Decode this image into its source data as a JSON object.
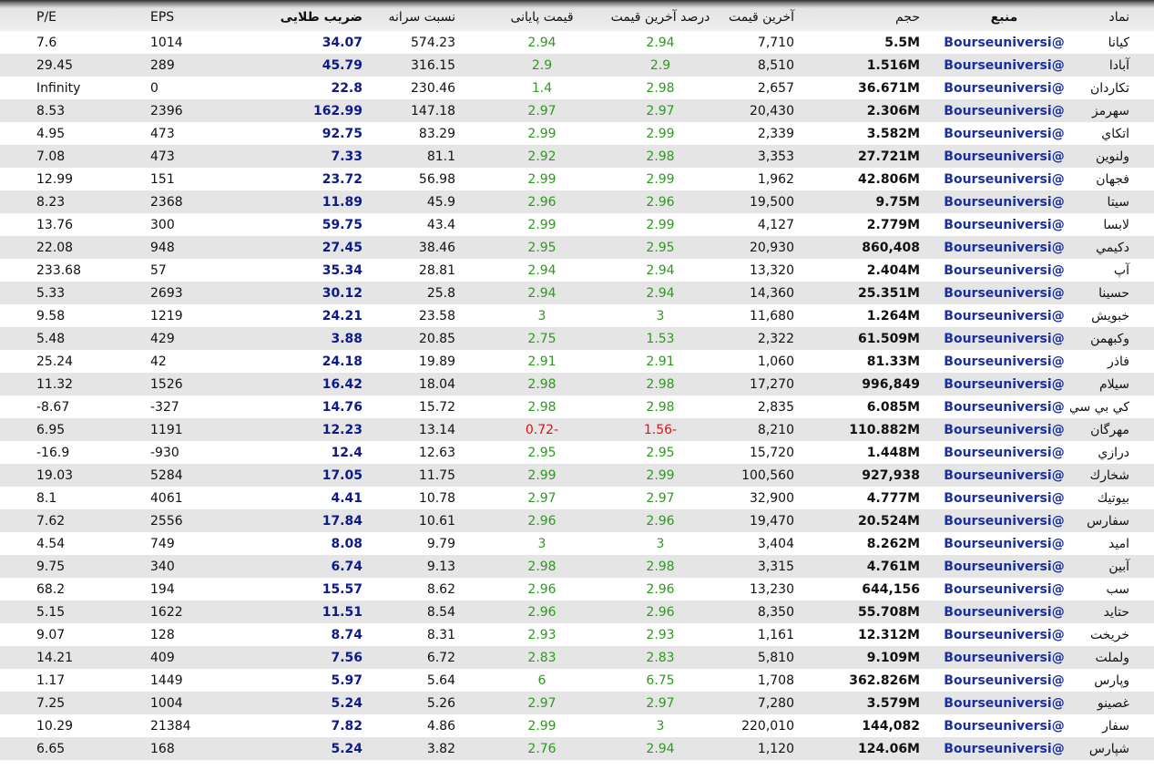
{
  "table": {
    "header": [
      "نماد",
      "منبع",
      "حجم",
      "آخرین قیمت",
      "درصد آخرین قیمت",
      "قیمت پایانی",
      "نسبت سرانه",
      "ضریب طلایی",
      "EPS",
      "P/E"
    ],
    "rows": [
      [
        "کیانا",
        "@Bourseuniversi",
        "5.5M",
        "7,710",
        "2.94",
        "2.94",
        "574.23",
        "34.07",
        "1014",
        "7.6"
      ],
      [
        "آبادا",
        "@Bourseuniversi",
        "1.516M",
        "8,510",
        "2.9",
        "2.9",
        "316.15",
        "45.79",
        "289",
        "29.45"
      ],
      [
        "تکاردان",
        "@Bourseuniversi",
        "36.671M",
        "2,657",
        "2.98",
        "1.4",
        "230.46",
        "22.8",
        "0",
        "Infinity"
      ],
      [
        "سهرمز",
        "@Bourseuniversi",
        "2.306M",
        "20,430",
        "2.97",
        "2.97",
        "147.18",
        "162.99",
        "2396",
        "8.53"
      ],
      [
        "اتکاي",
        "@Bourseuniversi",
        "3.582M",
        "2,339",
        "2.99",
        "2.99",
        "83.29",
        "92.75",
        "473",
        "4.95"
      ],
      [
        "ولنوین",
        "@Bourseuniversi",
        "27.721M",
        "3,353",
        "2.98",
        "2.92",
        "81.1",
        "7.33",
        "473",
        "7.08"
      ],
      [
        "فجهان",
        "@Bourseuniversi",
        "42.806M",
        "1,962",
        "2.99",
        "2.99",
        "56.98",
        "23.72",
        "151",
        "12.99"
      ],
      [
        "سيتا",
        "@Bourseuniversi",
        "9.75M",
        "19,500",
        "2.96",
        "2.96",
        "45.9",
        "11.89",
        "2368",
        "8.23"
      ],
      [
        "لابسا",
        "@Bourseuniversi",
        "2.779M",
        "4,127",
        "2.99",
        "2.99",
        "43.4",
        "59.75",
        "300",
        "13.76"
      ],
      [
        "دکيمي",
        "@Bourseuniversi",
        "860,408",
        "20,930",
        "2.95",
        "2.95",
        "38.46",
        "27.45",
        "948",
        "22.08"
      ],
      [
        "آپ",
        "@Bourseuniversi",
        "2.404M",
        "13,320",
        "2.94",
        "2.94",
        "28.81",
        "35.34",
        "57",
        "233.68"
      ],
      [
        "حسينا",
        "@Bourseuniversi",
        "25.351M",
        "14,360",
        "2.94",
        "2.94",
        "25.8",
        "30.12",
        "2693",
        "5.33"
      ],
      [
        "خبويش",
        "@Bourseuniversi",
        "1.264M",
        "11,680",
        "3",
        "3",
        "23.58",
        "24.21",
        "1219",
        "9.58"
      ],
      [
        "وكبهمن",
        "@Bourseuniversi",
        "61.509M",
        "2,322",
        "1.53",
        "2.75",
        "20.85",
        "3.88",
        "429",
        "5.48"
      ],
      [
        "فاذر",
        "@Bourseuniversi",
        "81.33M",
        "1,060",
        "2.91",
        "2.91",
        "19.89",
        "24.18",
        "42",
        "25.24"
      ],
      [
        "سيلام",
        "@Bourseuniversi",
        "996,849",
        "17,270",
        "2.98",
        "2.98",
        "18.04",
        "16.42",
        "1526",
        "11.32"
      ],
      [
        "كي بي سي",
        "@Bourseuniversi",
        "6.085M",
        "2,835",
        "2.98",
        "2.98",
        "15.72",
        "14.76",
        "-327",
        "-8.67"
      ],
      [
        "مهرگان",
        "@Bourseuniversi",
        "110.882M",
        "8,210",
        "-1.56",
        "-0.72",
        "13.14",
        "12.23",
        "1191",
        "6.95"
      ],
      [
        "درازي",
        "@Bourseuniversi",
        "1.448M",
        "15,720",
        "2.95",
        "2.95",
        "12.63",
        "12.4",
        "-930",
        "-16.9"
      ],
      [
        "شخارك",
        "@Bourseuniversi",
        "927,938",
        "100,560",
        "2.99",
        "2.99",
        "11.75",
        "17.05",
        "5284",
        "19.03"
      ],
      [
        "بيوتيك",
        "@Bourseuniversi",
        "4.777M",
        "32,900",
        "2.97",
        "2.97",
        "10.78",
        "4.41",
        "4061",
        "8.1"
      ],
      [
        "سفارس",
        "@Bourseuniversi",
        "20.524M",
        "19,470",
        "2.96",
        "2.96",
        "10.61",
        "17.84",
        "2556",
        "7.62"
      ],
      [
        "اميد",
        "@Bourseuniversi",
        "8.262M",
        "3,404",
        "3",
        "3",
        "9.79",
        "8.08",
        "749",
        "4.54"
      ],
      [
        "آبین",
        "@Bourseuniversi",
        "4.761M",
        "3,315",
        "2.98",
        "2.98",
        "9.13",
        "6.74",
        "340",
        "9.75"
      ],
      [
        "سب",
        "@Bourseuniversi",
        "644,156",
        "13,230",
        "2.96",
        "2.96",
        "8.62",
        "15.57",
        "194",
        "68.2"
      ],
      [
        "حتايد",
        "@Bourseuniversi",
        "55.708M",
        "8,350",
        "2.96",
        "2.96",
        "8.54",
        "11.51",
        "1622",
        "5.15"
      ],
      [
        "خريخت",
        "@Bourseuniversi",
        "12.312M",
        "1,161",
        "2.93",
        "2.93",
        "8.31",
        "8.74",
        "128",
        "9.07"
      ],
      [
        "ولملت",
        "@Bourseuniversi",
        "9.109M",
        "5,810",
        "2.83",
        "2.83",
        "6.72",
        "7.56",
        "409",
        "14.21"
      ],
      [
        "وپارس",
        "@Bourseuniversi",
        "362.826M",
        "1,708",
        "6.75",
        "6",
        "5.64",
        "5.97",
        "1449",
        "1.17"
      ],
      [
        "غصينو",
        "@Bourseuniversi",
        "3.579M",
        "7,280",
        "2.97",
        "2.97",
        "5.26",
        "5.24",
        "1004",
        "7.25"
      ],
      [
        "سفار",
        "@Bourseuniversi",
        "144,082",
        "220,010",
        "3",
        "2.99",
        "4.86",
        "7.82",
        "21384",
        "10.29"
      ],
      [
        "شپارس",
        "@Bourseuniversi",
        "124.06M",
        "1,120",
        "2.94",
        "2.76",
        "3.82",
        "5.24",
        "168",
        "6.65"
      ]
    ]
  }
}
